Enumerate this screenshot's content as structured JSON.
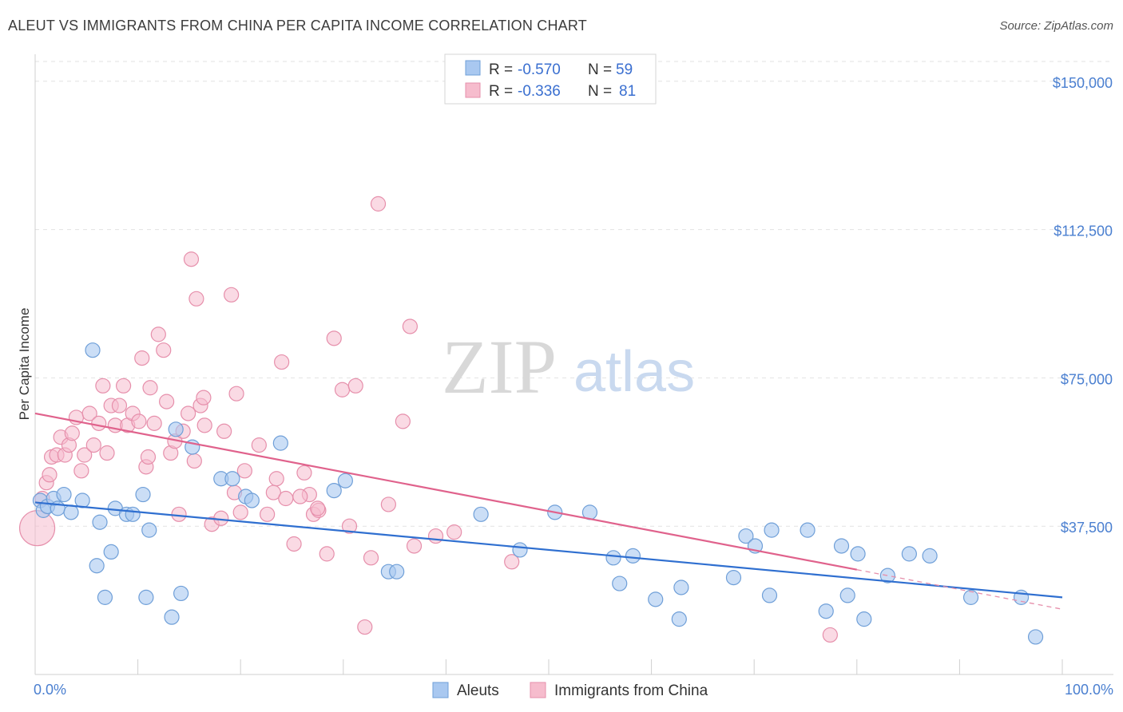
{
  "title": "ALEUT VS IMMIGRANTS FROM CHINA PER CAPITA INCOME CORRELATION CHART",
  "source": "Source: ZipAtlas.com",
  "watermark": {
    "zip": "ZIP",
    "atlas": "atlas"
  },
  "colors": {
    "aleut_fill": "#a9c8f0",
    "aleut_stroke": "#6f9fd8",
    "aleut_line": "#2f6fd0",
    "china_fill": "#f6bccd",
    "china_stroke": "#e68fab",
    "china_line": "#e0628c",
    "axis_text": "#4a7fd0",
    "grid": "#e2e2e2"
  },
  "legend": {
    "rows": [
      {
        "r_label": "R =",
        "r_value": "-0.570",
        "n_label": "N =",
        "n_value": "59"
      },
      {
        "r_label": "R =",
        "r_value": "-0.336",
        "n_label": "N =",
        "n_value": "81"
      }
    ]
  },
  "bottom_legend": [
    "Aleuts",
    "Immigrants from China"
  ],
  "chart_data": {
    "type": "scatter",
    "title": "ALEUT VS IMMIGRANTS FROM CHINA PER CAPITA INCOME CORRELATION CHART",
    "xlabel": "",
    "ylabel": "Per Capita Income",
    "xlim": [
      0,
      100
    ],
    "ylim": [
      0,
      155000
    ],
    "x_tick_labels": [
      "0.0%",
      "100.0%"
    ],
    "y_ticks": [
      37500,
      75000,
      112500,
      150000
    ],
    "y_tick_labels": [
      "$37,500",
      "$75,000",
      "$112,500",
      "$150,000"
    ],
    "grid": true,
    "legend_position": "top-center",
    "series": [
      {
        "name": "Aleuts",
        "r": -0.57,
        "n": 59,
        "trend": {
          "x": [
            0,
            100
          ],
          "y": [
            43500,
            19500
          ]
        },
        "points": [
          [
            0.5,
            44000
          ],
          [
            0.8,
            41500
          ],
          [
            1.2,
            42500
          ],
          [
            1.8,
            44500
          ],
          [
            2.2,
            42000
          ],
          [
            2.8,
            45500
          ],
          [
            3.5,
            41000
          ],
          [
            4.6,
            44000
          ],
          [
            5.6,
            82000
          ],
          [
            6.0,
            27500
          ],
          [
            6.3,
            38500
          ],
          [
            6.8,
            19500
          ],
          [
            7.4,
            31000
          ],
          [
            7.8,
            42000
          ],
          [
            8.9,
            40500
          ],
          [
            9.5,
            40500
          ],
          [
            10.5,
            45500
          ],
          [
            10.8,
            19500
          ],
          [
            11.1,
            36500
          ],
          [
            13.3,
            14500
          ],
          [
            13.7,
            62000
          ],
          [
            14.2,
            20500
          ],
          [
            15.3,
            57500
          ],
          [
            18.1,
            49500
          ],
          [
            19.2,
            49500
          ],
          [
            20.5,
            45000
          ],
          [
            21.1,
            44000
          ],
          [
            23.9,
            58500
          ],
          [
            29.1,
            46500
          ],
          [
            30.2,
            49000
          ],
          [
            34.4,
            26000
          ],
          [
            35.2,
            26000
          ],
          [
            43.4,
            40500
          ],
          [
            47.2,
            31500
          ],
          [
            54.0,
            41000
          ],
          [
            56.3,
            29500
          ],
          [
            56.9,
            23000
          ],
          [
            58.2,
            30000
          ],
          [
            60.4,
            19000
          ],
          [
            62.7,
            14000
          ],
          [
            62.9,
            22000
          ],
          [
            68.0,
            24500
          ],
          [
            69.2,
            35000
          ],
          [
            70.1,
            32500
          ],
          [
            71.5,
            20000
          ],
          [
            71.7,
            36500
          ],
          [
            75.2,
            36500
          ],
          [
            77.0,
            16000
          ],
          [
            78.5,
            32500
          ],
          [
            79.1,
            20000
          ],
          [
            80.1,
            30500
          ],
          [
            80.7,
            14000
          ],
          [
            83.0,
            25000
          ],
          [
            85.1,
            30500
          ],
          [
            87.1,
            30000
          ],
          [
            91.1,
            19500
          ],
          [
            96.0,
            19500
          ],
          [
            97.4,
            9500
          ],
          [
            50.6,
            41000
          ]
        ]
      },
      {
        "name": "Immigrants from China",
        "r": -0.336,
        "n": 81,
        "trend": {
          "x": [
            0,
            80
          ],
          "y": [
            66000,
            26500
          ]
        },
        "trend_dashed": {
          "x": [
            80,
            100
          ],
          "y": [
            26500,
            16500
          ]
        },
        "points": [
          [
            0.2,
            37000
          ],
          [
            0.7,
            44500
          ],
          [
            1.1,
            48500
          ],
          [
            1.4,
            50500
          ],
          [
            1.6,
            55000
          ],
          [
            2.1,
            55500
          ],
          [
            2.5,
            60000
          ],
          [
            2.9,
            55500
          ],
          [
            3.3,
            58000
          ],
          [
            3.6,
            61000
          ],
          [
            4.0,
            65000
          ],
          [
            4.5,
            51500
          ],
          [
            4.8,
            55500
          ],
          [
            5.3,
            66000
          ],
          [
            5.7,
            58000
          ],
          [
            6.2,
            63500
          ],
          [
            6.6,
            73000
          ],
          [
            7.0,
            56000
          ],
          [
            7.4,
            68000
          ],
          [
            7.8,
            63000
          ],
          [
            8.2,
            68000
          ],
          [
            8.6,
            73000
          ],
          [
            9.0,
            63000
          ],
          [
            9.5,
            66000
          ],
          [
            10.1,
            64000
          ],
          [
            10.4,
            80000
          ],
          [
            10.8,
            52500
          ],
          [
            11.2,
            72500
          ],
          [
            11.6,
            63500
          ],
          [
            12.0,
            86000
          ],
          [
            12.5,
            82000
          ],
          [
            12.8,
            69000
          ],
          [
            13.2,
            56000
          ],
          [
            13.6,
            59000
          ],
          [
            14.0,
            40500
          ],
          [
            14.4,
            61500
          ],
          [
            14.9,
            66000
          ],
          [
            15.2,
            105000
          ],
          [
            15.5,
            54000
          ],
          [
            15.7,
            95000
          ],
          [
            16.1,
            68000
          ],
          [
            16.4,
            70000
          ],
          [
            17.2,
            38000
          ],
          [
            18.1,
            39500
          ],
          [
            18.4,
            61500
          ],
          [
            19.1,
            96000
          ],
          [
            19.4,
            46000
          ],
          [
            19.6,
            71000
          ],
          [
            20.0,
            41000
          ],
          [
            20.4,
            51500
          ],
          [
            21.8,
            58000
          ],
          [
            22.6,
            40500
          ],
          [
            23.2,
            46000
          ],
          [
            23.5,
            49500
          ],
          [
            24.0,
            79000
          ],
          [
            24.4,
            44500
          ],
          [
            25.2,
            33000
          ],
          [
            26.2,
            51000
          ],
          [
            26.7,
            45500
          ],
          [
            27.1,
            40500
          ],
          [
            27.6,
            41500
          ],
          [
            28.4,
            30500
          ],
          [
            29.1,
            85000
          ],
          [
            29.9,
            72000
          ],
          [
            30.6,
            37500
          ],
          [
            31.2,
            73000
          ],
          [
            32.1,
            12000
          ],
          [
            32.7,
            29500
          ],
          [
            33.4,
            119000
          ],
          [
            34.4,
            43000
          ],
          [
            35.8,
            64000
          ],
          [
            36.5,
            88000
          ],
          [
            36.9,
            32500
          ],
          [
            39.0,
            35000
          ],
          [
            40.8,
            36000
          ],
          [
            46.4,
            28500
          ],
          [
            27.5,
            42000
          ],
          [
            25.8,
            45000
          ],
          [
            16.5,
            63000
          ],
          [
            11.0,
            55000
          ],
          [
            77.4,
            10000
          ]
        ]
      }
    ]
  }
}
